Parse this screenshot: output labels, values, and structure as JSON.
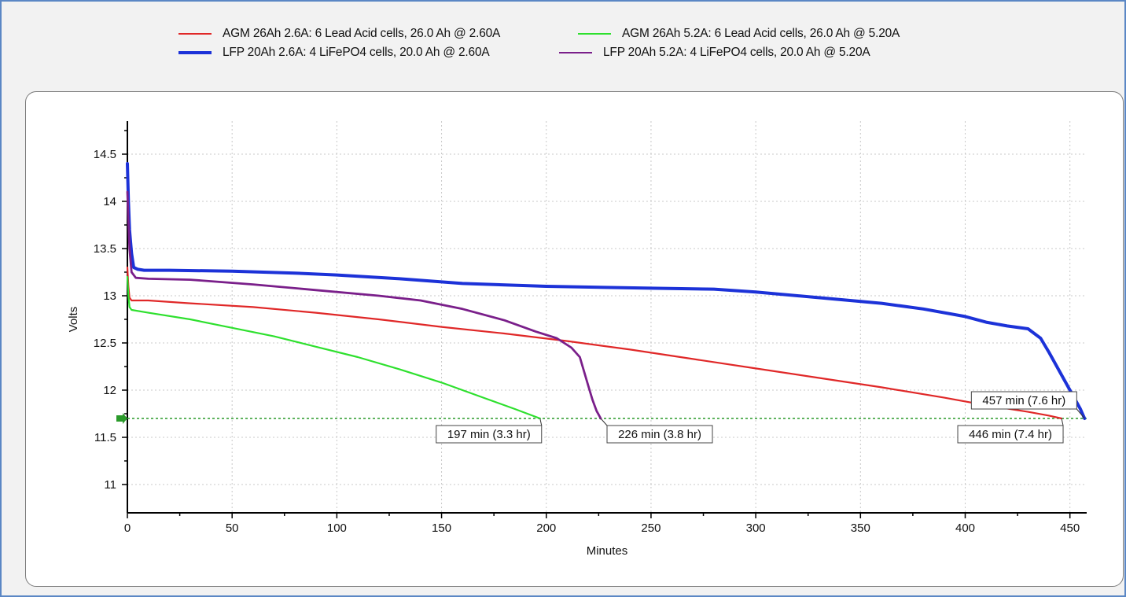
{
  "chart_data": {
    "type": "line",
    "xlabel": "Minutes",
    "ylabel": "Volts",
    "xlim": [
      0,
      458
    ],
    "ylim": [
      10.7,
      14.85
    ],
    "xticks": [
      0,
      50,
      100,
      150,
      200,
      250,
      300,
      350,
      400,
      450
    ],
    "yticks": [
      11,
      11.5,
      12,
      12.5,
      13,
      13.5,
      14,
      14.5
    ],
    "ytick_labels": [
      "11",
      "11.5",
      "12",
      "12.5",
      "13",
      "13.5",
      "14",
      "14.5"
    ],
    "grid": true,
    "legend_position": "top",
    "cutoff_voltage": 11.7,
    "cutoff_line_color": "#2a9a2a",
    "series": [
      {
        "name": "AGM 26Ah 2.6A: 6 Lead Acid cells, 26.0 Ah @ 2.60A",
        "color": "#e02828",
        "width": 2.2,
        "x": [
          0,
          0.5,
          1,
          2,
          10,
          30,
          60,
          90,
          120,
          150,
          180,
          210,
          240,
          270,
          300,
          330,
          360,
          390,
          410,
          430,
          440,
          446
        ],
        "y": [
          13.3,
          13.1,
          12.98,
          12.95,
          12.95,
          12.92,
          12.88,
          12.82,
          12.75,
          12.67,
          12.6,
          12.52,
          12.43,
          12.33,
          12.23,
          12.13,
          12.03,
          11.92,
          11.84,
          11.77,
          11.73,
          11.7
        ]
      },
      {
        "name": "AGM 26Ah 5.2A: 6 Lead Acid cells, 26.0 Ah @ 5.20A",
        "color": "#2ee02e",
        "width": 2.2,
        "x": [
          0,
          0.5,
          1,
          2,
          10,
          30,
          50,
          70,
          90,
          110,
          130,
          150,
          170,
          185,
          197
        ],
        "y": [
          13.2,
          13.0,
          12.88,
          12.85,
          12.82,
          12.75,
          12.66,
          12.57,
          12.46,
          12.35,
          12.22,
          12.08,
          11.92,
          11.8,
          11.7
        ]
      },
      {
        "name": "LFP 20Ah 2.6A: 4 LiFePO4 cells, 20.0 Ah @ 2.60A",
        "color": "#1c32d8",
        "width": 4,
        "x": [
          0,
          0.5,
          1,
          2,
          3,
          5,
          8,
          20,
          50,
          80,
          100,
          130,
          160,
          200,
          250,
          280,
          300,
          330,
          360,
          380,
          400,
          410,
          420,
          430,
          436,
          440,
          445,
          450,
          455,
          457
        ],
        "y": [
          14.4,
          14.0,
          13.7,
          13.45,
          13.3,
          13.28,
          13.27,
          13.27,
          13.26,
          13.24,
          13.22,
          13.18,
          13.13,
          13.1,
          13.08,
          13.07,
          13.04,
          12.98,
          12.92,
          12.86,
          12.78,
          12.72,
          12.68,
          12.65,
          12.55,
          12.4,
          12.2,
          12.0,
          11.8,
          11.7
        ]
      },
      {
        "name": "LFP 20Ah 5.2A: 4 LiFePO4 cells, 20.0 Ah @ 5.20A",
        "color": "#7a1f8a",
        "width": 2.8,
        "x": [
          0,
          0.5,
          1,
          2,
          4,
          10,
          30,
          60,
          90,
          120,
          140,
          160,
          180,
          195,
          205,
          212,
          216,
          218,
          220,
          222,
          224,
          226
        ],
        "y": [
          14.1,
          13.8,
          13.5,
          13.25,
          13.19,
          13.18,
          13.17,
          13.12,
          13.06,
          13.0,
          12.95,
          12.86,
          12.74,
          12.62,
          12.55,
          12.45,
          12.35,
          12.2,
          12.05,
          11.9,
          11.78,
          11.7
        ]
      }
    ],
    "annotations": [
      {
        "text": "197 min (3.3 hr)",
        "x": 197,
        "y": 11.7,
        "side": "below-left"
      },
      {
        "text": "226 min (3.8 hr)",
        "x": 226,
        "y": 11.7,
        "side": "below-right"
      },
      {
        "text": "446 min (7.4 hr)",
        "x": 446,
        "y": 11.7,
        "side": "below-left"
      },
      {
        "text": "457 min (7.6 hr)",
        "x": 457,
        "y": 11.7,
        "side": "above-left"
      }
    ]
  }
}
